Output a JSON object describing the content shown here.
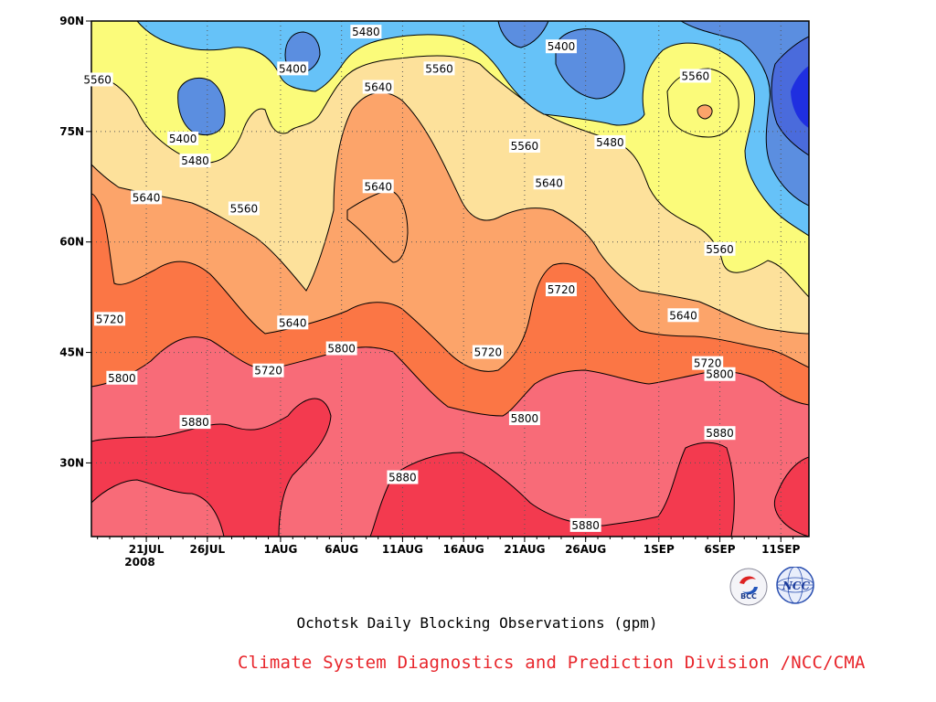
{
  "chart_data": {
    "type": "contour",
    "title": "",
    "xlabel": "",
    "ylabel": "",
    "units": "gpm",
    "x_ticks": [
      "21JUL",
      "26JUL",
      "1AUG",
      "6AUG",
      "11AUG",
      "16AUG",
      "21AUG",
      "26AUG",
      "1SEP",
      "6SEP",
      "11SEP"
    ],
    "x_year_label": "2008",
    "y_ticks": [
      "90N",
      "75N",
      "60N",
      "45N",
      "30N"
    ],
    "ylim": [
      20,
      90
    ],
    "grid": true,
    "contour_levels": [
      5400,
      5480,
      5560,
      5640,
      5720,
      5800,
      5880
    ],
    "fill_colors": {
      "below_5400": "#4a6bdc",
      "5400": "#5b8ee0",
      "5480": "#66c2f8",
      "5560": "#fbfb7a",
      "5640": "#fde19b",
      "5720": "#fca46a",
      "5800": "#fb7645",
      "5880": "#f86b78",
      "above_5880": "#f33a4f"
    },
    "contour_labels": [
      {
        "value": "5480",
        "lon_pos": "8AUG",
        "lat": 88.5
      },
      {
        "value": "5400",
        "lon_pos": "24AUG",
        "lat": 86.5
      },
      {
        "value": "5560",
        "lon_pos": "17JUL",
        "lat": 82
      },
      {
        "value": "5400",
        "lon_pos": "2AUG",
        "lat": 83.5
      },
      {
        "value": "5560",
        "lon_pos": "14AUG",
        "lat": 83.5
      },
      {
        "value": "5560",
        "lon_pos": "4SEP",
        "lat": 82.5
      },
      {
        "value": "5640",
        "lon_pos": "9AUG",
        "lat": 81
      },
      {
        "value": "5400",
        "lon_pos": "24JUL",
        "lat": 74
      },
      {
        "value": "5480",
        "lon_pos": "25JUL",
        "lat": 71
      },
      {
        "value": "5560",
        "lon_pos": "21AUG",
        "lat": 73
      },
      {
        "value": "5480",
        "lon_pos": "28AUG",
        "lat": 73.5
      },
      {
        "value": "5640",
        "lon_pos": "21JUL",
        "lat": 66
      },
      {
        "value": "5560",
        "lon_pos": "29JUL",
        "lat": 64.5
      },
      {
        "value": "5640",
        "lon_pos": "9AUG",
        "lat": 67.5
      },
      {
        "value": "5640",
        "lon_pos": "23AUG",
        "lat": 68
      },
      {
        "value": "5560",
        "lon_pos": "6SEP",
        "lat": 59
      },
      {
        "value": "5720",
        "lon_pos": "24AUG",
        "lat": 53.5
      },
      {
        "value": "5720",
        "lon_pos": "18JUL",
        "lat": 49.5
      },
      {
        "value": "5640",
        "lon_pos": "2AUG",
        "lat": 49
      },
      {
        "value": "5640",
        "lon_pos": "3SEP",
        "lat": 50
      },
      {
        "value": "5720",
        "lon_pos": "31JUL",
        "lat": 42.5
      },
      {
        "value": "5720",
        "lon_pos": "5SEP",
        "lat": 43.5
      },
      {
        "value": "5800",
        "lon_pos": "6AUG",
        "lat": 45.5
      },
      {
        "value": "5720",
        "lon_pos": "18AUG",
        "lat": 45
      },
      {
        "value": "5800",
        "lon_pos": "19JUL",
        "lat": 41.5
      },
      {
        "value": "5800",
        "lon_pos": "6SEP",
        "lat": 42
      },
      {
        "value": "5880",
        "lon_pos": "25JUL",
        "lat": 35.5
      },
      {
        "value": "5800",
        "lon_pos": "21AUG",
        "lat": 36
      },
      {
        "value": "5880",
        "lon_pos": "6SEP",
        "lat": 34
      },
      {
        "value": "5880",
        "lon_pos": "11AUG",
        "lat": 28
      },
      {
        "value": "5880",
        "lon_pos": "26AUG",
        "lat": 21.5
      }
    ]
  },
  "caption": "Ochotsk Daily Blocking Observations (gpm)",
  "credit": "Climate System Diagnostics and Prediction Division /NCC/CMA",
  "logos": [
    "bcc-logo",
    "ncc-logo"
  ],
  "logo_text": {
    "bcc": "BCC",
    "ncc": "NCC"
  }
}
